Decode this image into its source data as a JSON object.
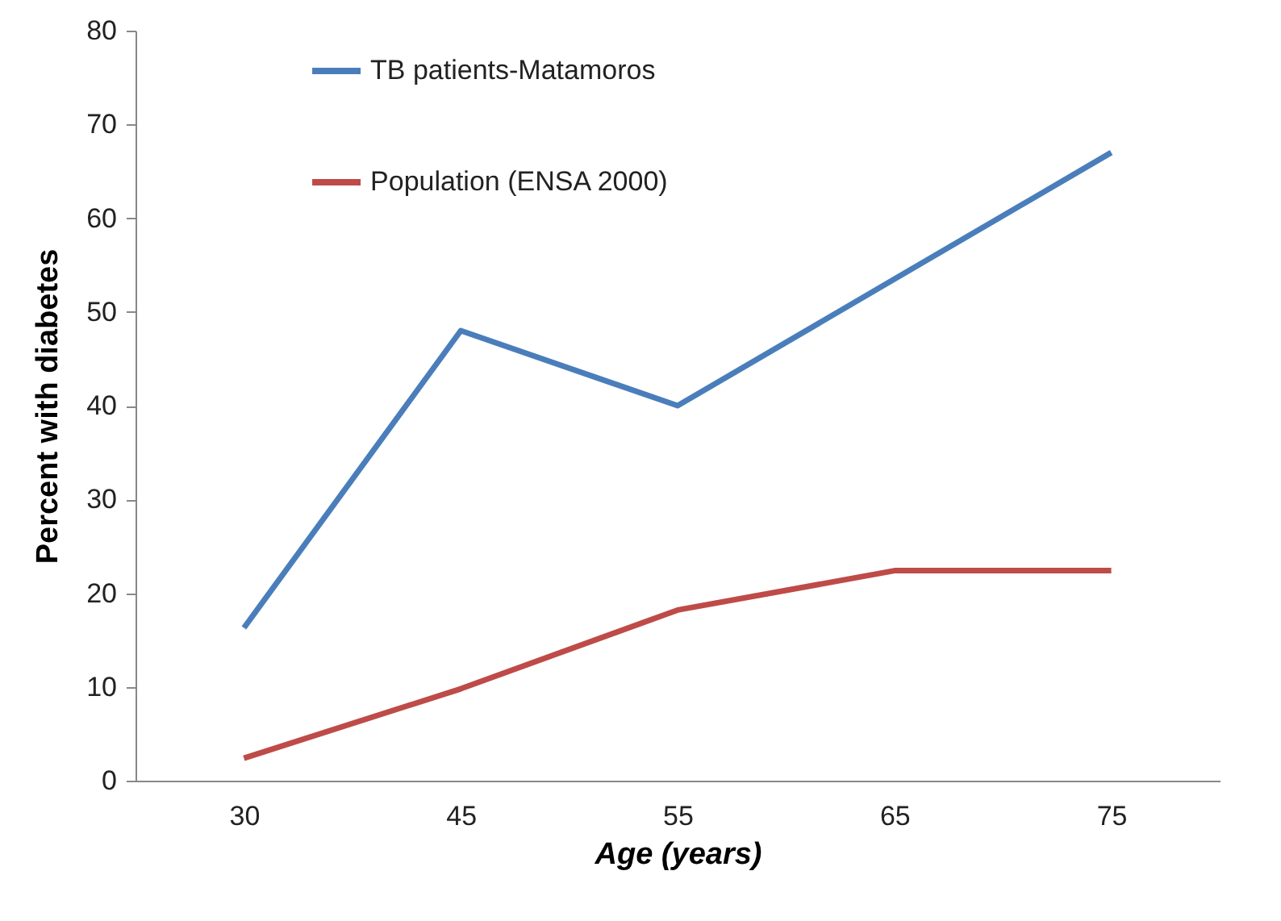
{
  "chart_data": {
    "type": "line",
    "xlabel": "Age (years)",
    "ylabel": "Percent with diabetes",
    "categories": [
      "30",
      "45",
      "55",
      "65",
      "75"
    ],
    "series": [
      {
        "name": "TB patients-Matamoros",
        "color": "#4a7ebb",
        "values": [
          16.3,
          48,
          40,
          53.5,
          67
        ]
      },
      {
        "name": "Population (ENSA 2000)",
        "color": "#be4b48",
        "values": [
          2.4,
          9.8,
          18.2,
          22.4,
          22.4
        ]
      }
    ],
    "ylim": [
      0,
      80
    ],
    "yticks": [
      0,
      10,
      20,
      30,
      40,
      50,
      60,
      70,
      80
    ],
    "grid": false,
    "legend": "top left",
    "marker": "none",
    "line_style": "solid"
  }
}
